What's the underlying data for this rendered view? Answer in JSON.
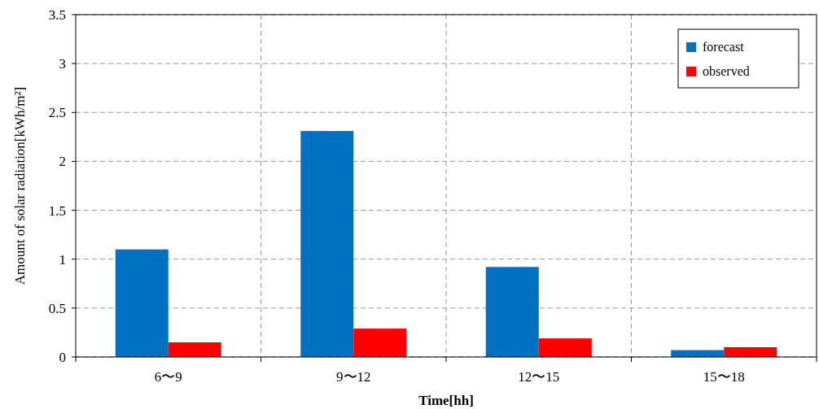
{
  "chart_data": {
    "type": "bar",
    "xlabel": "Time[hh]",
    "ylabel": "Amount of solar radiation[kWh/m²]",
    "categories": [
      "6〜9",
      "9〜12",
      "12〜15",
      "15〜18"
    ],
    "series": [
      {
        "name": "forecast",
        "color": "#0070c0",
        "values": [
          1.1,
          2.31,
          0.92,
          0.07
        ]
      },
      {
        "name": "observed",
        "color": "#ff0000",
        "values": [
          0.15,
          0.29,
          0.19,
          0.1
        ]
      }
    ],
    "ylim": [
      0,
      3.5
    ],
    "yticks": [
      0,
      0.5,
      1,
      1.5,
      2,
      2.5,
      3,
      3.5
    ],
    "grid": true,
    "legend": "top right"
  }
}
